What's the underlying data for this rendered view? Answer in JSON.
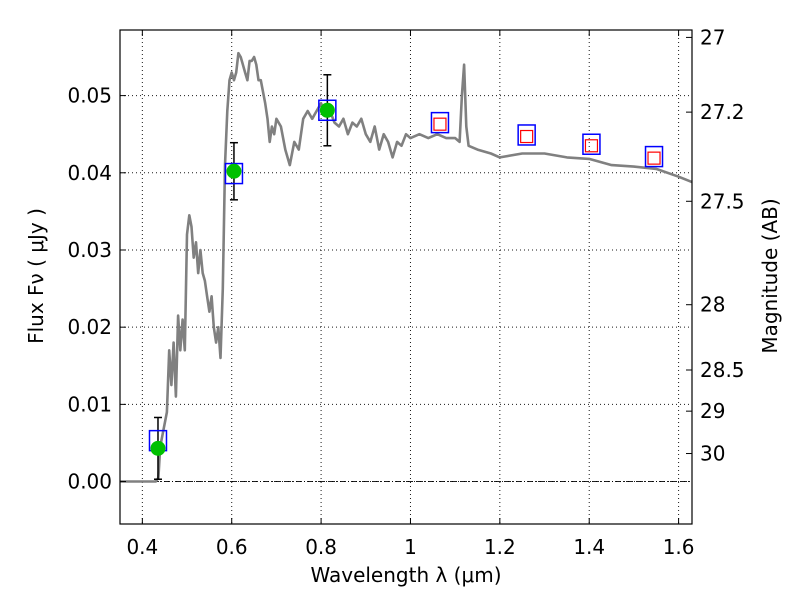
{
  "chart_data": {
    "type": "line",
    "title": "",
    "xlabel": "Wavelength  λ (μm)",
    "ylabel": "Flux  Fν  ( μJy )",
    "ylabel_right": "Magnitude (AB)",
    "xlim": [
      0.35,
      1.63
    ],
    "ylim": [
      -0.0055,
      0.0585
    ],
    "x_ticks": [
      0.4,
      0.6,
      0.8,
      1.0,
      1.2,
      1.4,
      1.6
    ],
    "x_tick_labels": [
      "0.4",
      "0.6",
      "0.8",
      "1",
      "1.2",
      "1.4",
      "1.6"
    ],
    "y_ticks": [
      0.0,
      0.01,
      0.02,
      0.03,
      0.04,
      0.05
    ],
    "y_tick_labels": [
      "0.00",
      "0.01",
      "0.02",
      "0.03",
      "0.04",
      "0.05"
    ],
    "right_ticks": [
      {
        "label": "27",
        "flux": 0.05754
      },
      {
        "label": "27.2",
        "flux": 0.04786
      },
      {
        "label": "27.5",
        "flux": 0.03631
      },
      {
        "label": "28",
        "flux": 0.02291
      },
      {
        "label": "28.5",
        "flux": 0.01445
      },
      {
        "label": "29",
        "flux": 0.00912
      },
      {
        "label": "30",
        "flux": 0.00363
      }
    ],
    "grid": true,
    "series": [
      {
        "name": "SED model",
        "color": "#808080",
        "x": [
          0.35,
          0.43,
          0.436,
          0.44,
          0.455,
          0.46,
          0.465,
          0.47,
          0.475,
          0.48,
          0.485,
          0.49,
          0.495,
          0.5,
          0.505,
          0.51,
          0.515,
          0.52,
          0.525,
          0.53,
          0.535,
          0.54,
          0.545,
          0.55,
          0.555,
          0.56,
          0.565,
          0.57,
          0.575,
          0.58,
          0.585,
          0.59,
          0.595,
          0.6,
          0.605,
          0.61,
          0.615,
          0.62,
          0.625,
          0.63,
          0.635,
          0.64,
          0.645,
          0.65,
          0.655,
          0.66,
          0.665,
          0.67,
          0.675,
          0.68,
          0.685,
          0.69,
          0.695,
          0.7,
          0.71,
          0.72,
          0.73,
          0.74,
          0.75,
          0.76,
          0.77,
          0.78,
          0.79,
          0.8,
          0.81,
          0.82,
          0.83,
          0.84,
          0.85,
          0.86,
          0.87,
          0.88,
          0.89,
          0.9,
          0.91,
          0.92,
          0.93,
          0.94,
          0.95,
          0.96,
          0.97,
          0.98,
          0.99,
          1.0,
          1.02,
          1.04,
          1.06,
          1.08,
          1.1,
          1.11,
          1.115,
          1.12,
          1.125,
          1.13,
          1.15,
          1.18,
          1.2,
          1.25,
          1.3,
          1.35,
          1.4,
          1.45,
          1.5,
          1.55,
          1.6,
          1.63
        ],
        "y": [
          0.0,
          0.0,
          0.0005,
          0.0045,
          0.009,
          0.017,
          0.0125,
          0.018,
          0.011,
          0.0215,
          0.017,
          0.021,
          0.017,
          0.032,
          0.0345,
          0.033,
          0.029,
          0.031,
          0.027,
          0.03,
          0.027,
          0.026,
          0.024,
          0.022,
          0.024,
          0.02,
          0.018,
          0.02,
          0.016,
          0.025,
          0.041,
          0.048,
          0.052,
          0.053,
          0.052,
          0.053,
          0.0555,
          0.055,
          0.054,
          0.053,
          0.052,
          0.0545,
          0.0545,
          0.055,
          0.054,
          0.052,
          0.052,
          0.0505,
          0.049,
          0.047,
          0.044,
          0.046,
          0.045,
          0.047,
          0.046,
          0.043,
          0.041,
          0.044,
          0.043,
          0.047,
          0.048,
          0.047,
          0.048,
          0.049,
          0.0475,
          0.048,
          0.0465,
          0.046,
          0.047,
          0.045,
          0.0465,
          0.046,
          0.047,
          0.045,
          0.044,
          0.046,
          0.043,
          0.045,
          0.044,
          0.042,
          0.044,
          0.0435,
          0.045,
          0.0445,
          0.045,
          0.0445,
          0.045,
          0.0445,
          0.0445,
          0.044,
          0.05,
          0.054,
          0.046,
          0.0435,
          0.043,
          0.0425,
          0.042,
          0.0425,
          0.0425,
          0.042,
          0.0418,
          0.041,
          0.0408,
          0.0405,
          0.0395,
          0.0388
        ]
      }
    ],
    "observed_points": [
      {
        "x": 0.435,
        "y": 0.0043,
        "yerr": 0.004
      },
      {
        "x": 0.605,
        "y": 0.0402,
        "yerr": 0.0037
      },
      {
        "x": 0.814,
        "y": 0.0481,
        "yerr": 0.0046
      }
    ],
    "model_squares": [
      {
        "x": 0.435,
        "y": 0.0053
      },
      {
        "x": 0.605,
        "y": 0.0399
      },
      {
        "x": 0.814,
        "y": 0.0481
      },
      {
        "x": 1.066,
        "y": 0.0465
      },
      {
        "x": 1.26,
        "y": 0.0449
      },
      {
        "x": 1.405,
        "y": 0.0437
      },
      {
        "x": 1.545,
        "y": 0.0421
      }
    ],
    "upper_limit_squares": [
      {
        "x": 1.066,
        "y": 0.0463
      },
      {
        "x": 1.26,
        "y": 0.0447
      },
      {
        "x": 1.405,
        "y": 0.0435
      },
      {
        "x": 1.545,
        "y": 0.0419
      }
    ],
    "colors": {
      "observed": "#00c000",
      "model_square": "#0000ff",
      "limit_square": "#ff0000",
      "sed_line": "#808080"
    }
  }
}
